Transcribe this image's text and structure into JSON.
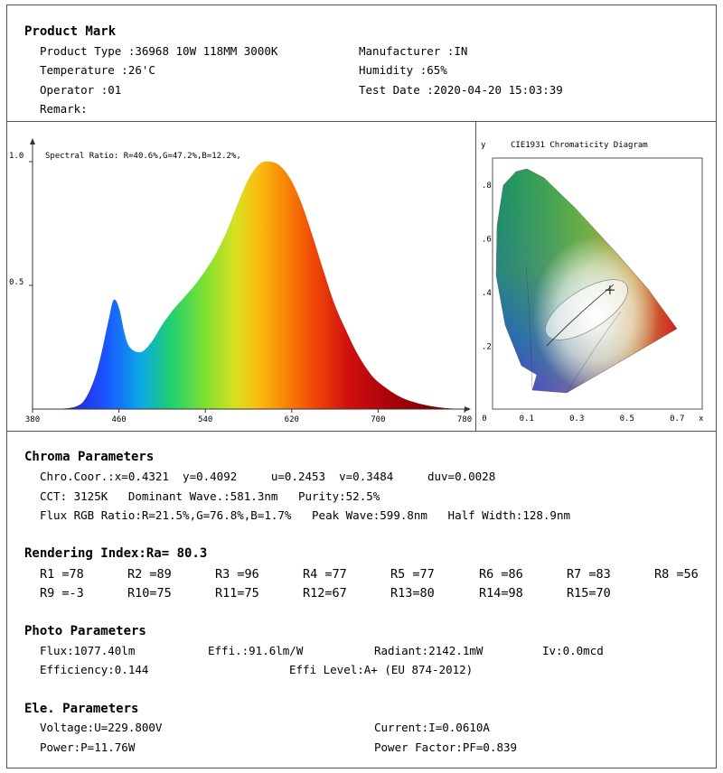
{
  "product_mark": {
    "title": "Product Mark",
    "product_type": "Product Type :36968 10W 118MM 3000K",
    "manufacturer": "Manufacturer :IN",
    "temperature": "Temperature :26'C",
    "humidity": "Humidity :65%",
    "operator": "Operator :01",
    "test_date": "Test Date :2020-04-20 15:03:39",
    "remark": "Remark:"
  },
  "spectrum_chart": {
    "y_tick_1": "1.0",
    "y_tick_05": "0.5",
    "spectral_ratio": "Spectral Ratio:  R=40.6%,G=47.2%,B=12.2%,",
    "x_ticks": [
      "380",
      "460",
      "540",
      "620",
      "700",
      "780"
    ]
  },
  "cie_chart": {
    "title": "CIE1931 Chromaticity Diagram",
    "y_label": "y",
    "x_label": "x",
    "y_ticks": [
      ".8",
      ".6",
      ".4",
      ".2"
    ],
    "x_ticks": [
      "0",
      "0.1",
      "0.3",
      "0.5",
      "0.7"
    ]
  },
  "chart_data": [
    {
      "type": "area",
      "title": "",
      "xlabel": "",
      "ylabel": "",
      "xlim": [
        380,
        780
      ],
      "ylim": [
        0,
        1.0
      ],
      "x_ticks": [
        380,
        460,
        540,
        620,
        700,
        780
      ],
      "y_ticks": [
        0.5,
        1.0
      ],
      "annotation": "Spectral Ratio:  R=40.6%,G=47.2%,B=12.2%,",
      "x": [
        380,
        400,
        420,
        430,
        440,
        450,
        455,
        460,
        465,
        470,
        480,
        490,
        500,
        510,
        520,
        530,
        540,
        550,
        560,
        570,
        580,
        590,
        600,
        610,
        620,
        630,
        640,
        650,
        660,
        670,
        680,
        690,
        700,
        720,
        740,
        760,
        780
      ],
      "y": [
        0.0,
        0.0,
        0.01,
        0.05,
        0.16,
        0.35,
        0.44,
        0.41,
        0.31,
        0.25,
        0.23,
        0.27,
        0.34,
        0.4,
        0.45,
        0.5,
        0.56,
        0.63,
        0.72,
        0.83,
        0.93,
        0.99,
        1.0,
        0.98,
        0.92,
        0.82,
        0.69,
        0.55,
        0.42,
        0.32,
        0.23,
        0.16,
        0.11,
        0.05,
        0.02,
        0.005,
        0.0
      ]
    },
    {
      "type": "scatter",
      "title": "CIE1931 Chromaticity Diagram",
      "xlabel": "x",
      "ylabel": "y",
      "xlim": [
        0,
        0.8
      ],
      "ylim": [
        0,
        0.9
      ],
      "x_ticks": [
        0,
        0.1,
        0.3,
        0.5,
        0.7
      ],
      "y_ticks": [
        0.2,
        0.4,
        0.6,
        0.8
      ],
      "points": [
        {
          "x": 0.4321,
          "y": 0.4092
        }
      ]
    }
  ],
  "chroma": {
    "title": "Chroma Parameters",
    "line1": "Chro.Coor.:x=0.4321  y=0.4092     u=0.2453  v=0.3484     duv=0.0028",
    "line2": "CCT: 3125K   Dominant Wave.:581.3nm   Purity:52.5%",
    "line3": "Flux RGB Ratio:R=21.5%,G=76.8%,B=1.7%   Peak Wave:599.8nm   Half Width:128.9nm"
  },
  "rendering": {
    "title": "Rendering Index:Ra= 80.3",
    "row1": [
      "R1 =78",
      "R2 =89",
      "R3 =96",
      "R4 =77",
      "R5 =77",
      "R6 =86",
      "R7 =83",
      "R8 =56"
    ],
    "row2": [
      "R9 =-3",
      "R10=75",
      "R11=75",
      "R12=67",
      "R13=80",
      "R14=98",
      "R15=70"
    ]
  },
  "photo": {
    "title": "Photo Parameters",
    "flux": "Flux:1077.40lm",
    "effi": "Effi.:91.6lm/W",
    "radiant": "Radiant:2142.1mW",
    "iv": "Iv:0.0mcd",
    "efficiency": "Efficiency:0.144",
    "effi_level": "Effi Level:A+ (EU 874-2012)"
  },
  "ele": {
    "title": "Ele. Parameters",
    "voltage": "Voltage:U=229.800V",
    "current": "Current:I=0.0610A",
    "power": "Power:P=11.76W",
    "power_factor": "Power Factor:PF=0.839"
  }
}
